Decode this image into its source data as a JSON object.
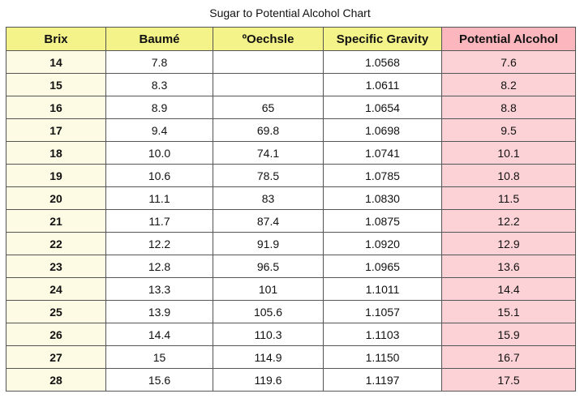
{
  "title": "Sugar to Potential Alcohol Chart",
  "columns": [
    "Brix",
    "Baumé",
    "ºOechsle",
    "Specific Gravity",
    "Potential Alcohol"
  ],
  "rows": [
    [
      "14",
      "7.8",
      "",
      "1.0568",
      "7.6"
    ],
    [
      "15",
      "8.3",
      "",
      "1.0611",
      "8.2"
    ],
    [
      "16",
      "8.9",
      "65",
      "1.0654",
      "8.8"
    ],
    [
      "17",
      "9.4",
      "69.8",
      "1.0698",
      "9.5"
    ],
    [
      "18",
      "10.0",
      "74.1",
      "1.0741",
      "10.1"
    ],
    [
      "19",
      "10.6",
      "78.5",
      "1.0785",
      "10.8"
    ],
    [
      "20",
      "11.1",
      "83",
      "1.0830",
      "11.5"
    ],
    [
      "21",
      "11.7",
      "87.4",
      "1.0875",
      "12.2"
    ],
    [
      "22",
      "12.2",
      "91.9",
      "1.0920",
      "12.9"
    ],
    [
      "23",
      "12.8",
      "96.5",
      "1.0965",
      "13.6"
    ],
    [
      "24",
      "13.3",
      "101",
      "1.1011",
      "14.4"
    ],
    [
      "25",
      "13.9",
      "105.6",
      "1.1057",
      "15.1"
    ],
    [
      "26",
      "14.4",
      "110.3",
      "1.1103",
      "15.9"
    ],
    [
      "27",
      "15",
      "114.9",
      "1.1150",
      "16.7"
    ],
    [
      "28",
      "15.6",
      "119.6",
      "1.1197",
      "17.5"
    ]
  ],
  "colors": {
    "header_bg": "#f3f38a",
    "potential_alcohol_header_bg": "#fbb7bd",
    "potential_alcohol_cell_bg": "#fdd2d6",
    "brix_cell_bg": "#fdfbe3"
  }
}
